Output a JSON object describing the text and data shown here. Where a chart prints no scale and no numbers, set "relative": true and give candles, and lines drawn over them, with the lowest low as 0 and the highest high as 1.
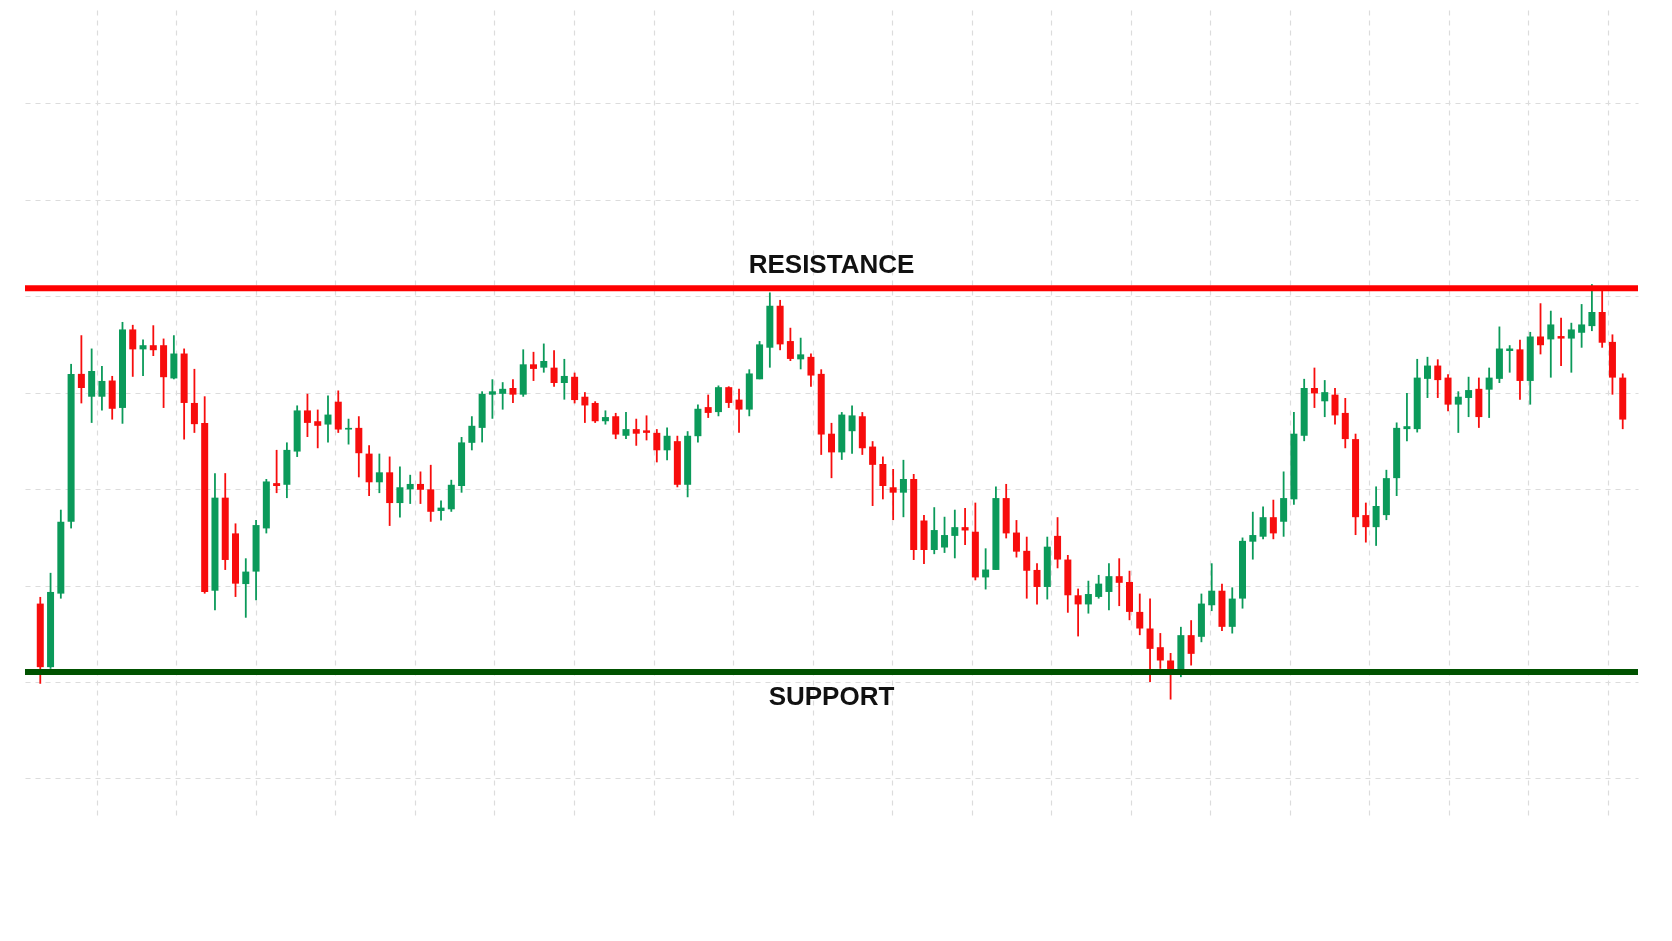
{
  "chart_data": {
    "type": "candlestick",
    "relative": true,
    "grid": true,
    "tick_labels": false,
    "categories": [
      null,
      null,
      null,
      null,
      null,
      null,
      null,
      null,
      null,
      null,
      null,
      null,
      null,
      null,
      null,
      null,
      null,
      null,
      null,
      null,
      null,
      null,
      null,
      null,
      null,
      null,
      null,
      null,
      null,
      null,
      null,
      null,
      null,
      null,
      null,
      null,
      null,
      null,
      null,
      null,
      null,
      null,
      null,
      null,
      null,
      null,
      null,
      null,
      null,
      null,
      null,
      null,
      null,
      null,
      null,
      null,
      null,
      null,
      null,
      null,
      null,
      null,
      null,
      null,
      null,
      null,
      null,
      null,
      null,
      null,
      null,
      null,
      null,
      null,
      null,
      null,
      null,
      null,
      null,
      null,
      null,
      null,
      null,
      null,
      null,
      null,
      null,
      null,
      null,
      null,
      null,
      null,
      null,
      null,
      null,
      null,
      null,
      null,
      null,
      null,
      null,
      null,
      null,
      null,
      null,
      null,
      null,
      null,
      null,
      null,
      null,
      null,
      null,
      null,
      null,
      null,
      null,
      null,
      null,
      null,
      null,
      null,
      null,
      null,
      null,
      null,
      null,
      null,
      null,
      null,
      null,
      null,
      null,
      null,
      null,
      null,
      null,
      null,
      null,
      null,
      null,
      null,
      null,
      null,
      null,
      null,
      null,
      null,
      null,
      null,
      null,
      null,
      null,
      null,
      null
    ],
    "ohlc": [
      [
        0.231,
        0.247,
        0.038,
        0.078
      ],
      [
        0.078,
        0.305,
        0.074,
        0.259
      ],
      [
        0.255,
        0.457,
        0.243,
        0.428
      ],
      [
        0.428,
        0.808,
        0.412,
        0.784
      ],
      [
        0.784,
        0.877,
        0.713,
        0.75
      ],
      [
        0.729,
        0.845,
        0.666,
        0.791
      ],
      [
        0.729,
        0.803,
        0.696,
        0.767
      ],
      [
        0.768,
        0.779,
        0.674,
        0.7
      ],
      [
        0.702,
        0.909,
        0.664,
        0.891
      ],
      [
        0.891,
        0.902,
        0.777,
        0.843
      ],
      [
        0.843,
        0.867,
        0.779,
        0.853
      ],
      [
        0.853,
        0.901,
        0.827,
        0.841
      ],
      [
        0.853,
        0.869,
        0.702,
        0.776
      ],
      [
        0.773,
        0.877,
        0.771,
        0.833
      ],
      [
        0.833,
        0.845,
        0.626,
        0.714
      ],
      [
        0.714,
        0.796,
        0.642,
        0.663
      ],
      [
        0.666,
        0.73,
        0.255,
        0.259
      ],
      [
        0.262,
        0.545,
        0.215,
        0.486
      ],
      [
        0.486,
        0.545,
        0.312,
        0.336
      ],
      [
        0.4,
        0.424,
        0.247,
        0.279
      ],
      [
        0.278,
        0.34,
        0.197,
        0.308
      ],
      [
        0.308,
        0.432,
        0.239,
        0.42
      ],
      [
        0.412,
        0.531,
        0.4,
        0.525
      ],
      [
        0.521,
        0.601,
        0.497,
        0.514
      ],
      [
        0.517,
        0.619,
        0.485,
        0.601
      ],
      [
        0.597,
        0.708,
        0.584,
        0.696
      ],
      [
        0.696,
        0.736,
        0.632,
        0.666
      ],
      [
        0.67,
        0.698,
        0.605,
        0.659
      ],
      [
        0.662,
        0.732,
        0.619,
        0.686
      ],
      [
        0.717,
        0.744,
        0.642,
        0.65
      ],
      [
        0.65,
        0.676,
        0.614,
        0.654
      ],
      [
        0.654,
        0.682,
        0.535,
        0.593
      ],
      [
        0.592,
        0.612,
        0.49,
        0.523
      ],
      [
        0.523,
        0.592,
        0.497,
        0.547
      ],
      [
        0.547,
        0.585,
        0.418,
        0.473
      ],
      [
        0.473,
        0.561,
        0.438,
        0.511
      ],
      [
        0.506,
        0.541,
        0.471,
        0.519
      ],
      [
        0.519,
        0.549,
        0.471,
        0.505
      ],
      [
        0.506,
        0.565,
        0.428,
        0.452
      ],
      [
        0.454,
        0.479,
        0.431,
        0.462
      ],
      [
        0.458,
        0.529,
        0.452,
        0.517
      ],
      [
        0.514,
        0.632,
        0.498,
        0.619
      ],
      [
        0.618,
        0.682,
        0.6,
        0.659
      ],
      [
        0.654,
        0.742,
        0.619,
        0.736
      ],
      [
        0.734,
        0.771,
        0.676,
        0.742
      ],
      [
        0.736,
        0.764,
        0.698,
        0.748
      ],
      [
        0.75,
        0.771,
        0.714,
        0.734
      ],
      [
        0.734,
        0.843,
        0.729,
        0.807
      ],
      [
        0.807,
        0.837,
        0.767,
        0.796
      ],
      [
        0.799,
        0.857,
        0.787,
        0.815
      ],
      [
        0.799,
        0.841,
        0.753,
        0.762
      ],
      [
        0.762,
        0.82,
        0.722,
        0.779
      ],
      [
        0.777,
        0.787,
        0.713,
        0.721
      ],
      [
        0.729,
        0.74,
        0.666,
        0.708
      ],
      [
        0.714,
        0.718,
        0.666,
        0.67
      ],
      [
        0.67,
        0.696,
        0.662,
        0.68
      ],
      [
        0.682,
        0.69,
        0.627,
        0.638
      ],
      [
        0.635,
        0.692,
        0.627,
        0.651
      ],
      [
        0.651,
        0.676,
        0.611,
        0.64
      ],
      [
        0.648,
        0.684,
        0.624,
        0.642
      ],
      [
        0.642,
        0.651,
        0.571,
        0.6
      ],
      [
        0.6,
        0.655,
        0.576,
        0.635
      ],
      [
        0.622,
        0.635,
        0.511,
        0.517
      ],
      [
        0.517,
        0.646,
        0.487,
        0.635
      ],
      [
        0.634,
        0.71,
        0.619,
        0.7
      ],
      [
        0.704,
        0.734,
        0.678,
        0.69
      ],
      [
        0.692,
        0.756,
        0.682,
        0.752
      ],
      [
        0.752,
        0.754,
        0.702,
        0.714
      ],
      [
        0.722,
        0.748,
        0.642,
        0.698
      ],
      [
        0.698,
        0.795,
        0.682,
        0.785
      ],
      [
        0.771,
        0.863,
        0.771,
        0.855
      ],
      [
        0.847,
        0.98,
        0.799,
        0.948
      ],
      [
        0.948,
        0.962,
        0.841,
        0.855
      ],
      [
        0.863,
        0.895,
        0.815,
        0.82
      ],
      [
        0.819,
        0.871,
        0.795,
        0.831
      ],
      [
        0.825,
        0.833,
        0.753,
        0.78
      ],
      [
        0.784,
        0.795,
        0.589,
        0.638
      ],
      [
        0.64,
        0.666,
        0.533,
        0.595
      ],
      [
        0.595,
        0.692,
        0.577,
        0.686
      ],
      [
        0.646,
        0.708,
        0.592,
        0.684
      ],
      [
        0.682,
        0.692,
        0.589,
        0.605
      ],
      [
        0.609,
        0.622,
        0.466,
        0.565
      ],
      [
        0.567,
        0.585,
        0.482,
        0.514
      ],
      [
        0.511,
        0.555,
        0.432,
        0.498
      ],
      [
        0.498,
        0.577,
        0.439,
        0.531
      ],
      [
        0.531,
        0.543,
        0.336,
        0.36
      ],
      [
        0.431,
        0.444,
        0.326,
        0.36
      ],
      [
        0.36,
        0.463,
        0.35,
        0.408
      ],
      [
        0.366,
        0.44,
        0.353,
        0.396
      ],
      [
        0.394,
        0.457,
        0.34,
        0.415
      ],
      [
        0.415,
        0.461,
        0.372,
        0.407
      ],
      [
        0.404,
        0.474,
        0.287,
        0.294
      ],
      [
        0.294,
        0.364,
        0.265,
        0.313
      ],
      [
        0.312,
        0.513,
        0.312,
        0.485
      ],
      [
        0.485,
        0.519,
        0.388,
        0.4
      ],
      [
        0.402,
        0.432,
        0.342,
        0.356
      ],
      [
        0.358,
        0.392,
        0.243,
        0.31
      ],
      [
        0.312,
        0.328,
        0.229,
        0.271
      ],
      [
        0.271,
        0.392,
        0.241,
        0.368
      ],
      [
        0.394,
        0.439,
        0.316,
        0.337
      ],
      [
        0.337,
        0.348,
        0.209,
        0.251
      ],
      [
        0.251,
        0.267,
        0.152,
        0.229
      ],
      [
        0.229,
        0.286,
        0.207,
        0.254
      ],
      [
        0.247,
        0.3,
        0.243,
        0.279
      ],
      [
        0.259,
        0.328,
        0.215,
        0.297
      ],
      [
        0.297,
        0.34,
        0.225,
        0.281
      ],
      [
        0.283,
        0.31,
        0.191,
        0.211
      ],
      [
        0.211,
        0.255,
        0.155,
        0.171
      ],
      [
        0.171,
        0.243,
        0.042,
        0.122
      ],
      [
        0.126,
        0.16,
        0.074,
        0.094
      ],
      [
        0.094,
        0.112,
        0.0,
        0.07
      ],
      [
        0.062,
        0.175,
        0.054,
        0.155
      ],
      [
        0.155,
        0.191,
        0.082,
        0.11
      ],
      [
        0.151,
        0.255,
        0.138,
        0.231
      ],
      [
        0.227,
        0.328,
        0.213,
        0.262
      ],
      [
        0.262,
        0.279,
        0.165,
        0.175
      ],
      [
        0.175,
        0.27,
        0.159,
        0.243
      ],
      [
        0.243,
        0.39,
        0.219,
        0.382
      ],
      [
        0.38,
        0.452,
        0.337,
        0.396
      ],
      [
        0.392,
        0.465,
        0.386,
        0.439
      ],
      [
        0.439,
        0.481,
        0.386,
        0.4
      ],
      [
        0.428,
        0.549,
        0.392,
        0.485
      ],
      [
        0.482,
        0.692,
        0.469,
        0.64
      ],
      [
        0.635,
        0.772,
        0.622,
        0.75
      ],
      [
        0.75,
        0.799,
        0.702,
        0.737
      ],
      [
        0.718,
        0.769,
        0.68,
        0.74
      ],
      [
        0.734,
        0.75,
        0.662,
        0.684
      ],
      [
        0.69,
        0.726,
        0.605,
        0.627
      ],
      [
        0.627,
        0.64,
        0.396,
        0.439
      ],
      [
        0.444,
        0.474,
        0.378,
        0.415
      ],
      [
        0.415,
        0.513,
        0.37,
        0.466
      ],
      [
        0.444,
        0.553,
        0.432,
        0.533
      ],
      [
        0.533,
        0.667,
        0.49,
        0.654
      ],
      [
        0.651,
        0.738,
        0.622,
        0.658
      ],
      [
        0.651,
        0.82,
        0.643,
        0.775
      ],
      [
        0.772,
        0.825,
        0.726,
        0.804
      ],
      [
        0.804,
        0.819,
        0.726,
        0.769
      ],
      [
        0.775,
        0.783,
        0.694,
        0.71
      ],
      [
        0.71,
        0.742,
        0.642,
        0.729
      ],
      [
        0.726,
        0.777,
        0.68,
        0.745
      ],
      [
        0.748,
        0.775,
        0.654,
        0.68
      ],
      [
        0.746,
        0.799,
        0.678,
        0.775
      ],
      [
        0.772,
        0.898,
        0.762,
        0.845
      ],
      [
        0.839,
        0.853,
        0.787,
        0.845
      ],
      [
        0.843,
        0.866,
        0.722,
        0.767
      ],
      [
        0.767,
        0.885,
        0.71,
        0.874
      ],
      [
        0.874,
        0.954,
        0.831,
        0.853
      ],
      [
        0.867,
        0.936,
        0.775,
        0.903
      ],
      [
        0.875,
        0.919,
        0.803,
        0.869
      ],
      [
        0.869,
        0.907,
        0.787,
        0.891
      ],
      [
        0.883,
        0.952,
        0.847,
        0.903
      ],
      [
        0.899,
        1.0,
        0.887,
        0.933
      ],
      [
        0.933,
        0.988,
        0.847,
        0.859
      ],
      [
        0.861,
        0.879,
        0.734,
        0.775
      ],
      [
        0.775,
        0.785,
        0.651,
        0.674
      ]
    ],
    "colors": [
      "#f70d0d",
      "#0b9a5a",
      "#0b9a5a",
      "#0b9a5a",
      "#f70d0d",
      "#0b9a5a",
      "#0b9a5a",
      "#f70d0d",
      "#0b9a5a",
      "#f70d0d",
      "#0b9a5a",
      "#f70d0d",
      "#f70d0d",
      "#0b9a5a",
      "#f70d0d",
      "#f70d0d",
      "#f70d0d",
      "#0b9a5a",
      "#f70d0d",
      "#f70d0d",
      "#0b9a5a",
      "#0b9a5a",
      "#0b9a5a",
      "#f70d0d",
      "#0b9a5a",
      "#0b9a5a",
      "#f70d0d",
      "#f70d0d",
      "#0b9a5a",
      "#f70d0d",
      "#0b9a5a",
      "#f70d0d",
      "#f70d0d",
      "#0b9a5a",
      "#f70d0d",
      "#0b9a5a",
      "#0b9a5a",
      "#f70d0d",
      "#f70d0d",
      "#0b9a5a",
      "#0b9a5a",
      "#0b9a5a",
      "#0b9a5a",
      "#0b9a5a",
      "#0b9a5a",
      "#0b9a5a",
      "#f70d0d",
      "#0b9a5a",
      "#f70d0d",
      "#0b9a5a",
      "#f70d0d",
      "#0b9a5a",
      "#f70d0d",
      "#f70d0d",
      "#f70d0d",
      "#0b9a5a",
      "#f70d0d",
      "#0b9a5a",
      "#f70d0d",
      "#f70d0d",
      "#f70d0d",
      "#0b9a5a",
      "#f70d0d",
      "#0b9a5a",
      "#0b9a5a",
      "#f70d0d",
      "#0b9a5a",
      "#f70d0d",
      "#f70d0d",
      "#0b9a5a",
      "#0b9a5a",
      "#0b9a5a",
      "#f70d0d",
      "#f70d0d",
      "#0b9a5a",
      "#f70d0d",
      "#f70d0d",
      "#f70d0d",
      "#0b9a5a",
      "#0b9a5a",
      "#f70d0d",
      "#f70d0d",
      "#f70d0d",
      "#f70d0d",
      "#0b9a5a",
      "#f70d0d",
      "#f70d0d",
      "#0b9a5a",
      "#0b9a5a",
      "#0b9a5a",
      "#f70d0d",
      "#f70d0d",
      "#0b9a5a",
      "#0b9a5a",
      "#f70d0d",
      "#f70d0d",
      "#f70d0d",
      "#f70d0d",
      "#0b9a5a",
      "#f70d0d",
      "#f70d0d",
      "#f70d0d",
      "#0b9a5a",
      "#0b9a5a",
      "#0b9a5a",
      "#f70d0d",
      "#f70d0d",
      "#f70d0d",
      "#f70d0d",
      "#f70d0d",
      "#f70d0d",
      "#0b9a5a",
      "#f70d0d",
      "#0b9a5a",
      "#0b9a5a",
      "#f70d0d",
      "#0b9a5a",
      "#0b9a5a",
      "#0b9a5a",
      "#0b9a5a",
      "#f70d0d",
      "#0b9a5a",
      "#0b9a5a",
      "#0b9a5a",
      "#f70d0d",
      "#0b9a5a",
      "#f70d0d",
      "#f70d0d",
      "#f70d0d",
      "#f70d0d",
      "#0b9a5a",
      "#0b9a5a",
      "#0b9a5a",
      "#0b9a5a",
      "#0b9a5a",
      "#0b9a5a",
      "#f70d0d",
      "#f70d0d",
      "#0b9a5a",
      "#0b9a5a",
      "#f70d0d",
      "#0b9a5a",
      "#0b9a5a",
      "#0b9a5a",
      "#f70d0d",
      "#0b9a5a",
      "#f70d0d",
      "#0b9a5a",
      "#f70d0d",
      "#0b9a5a",
      "#0b9a5a",
      "#0b9a5a",
      "#f70d0d",
      "#f70d0d",
      "#f70d0d"
    ],
    "ref_lines": [
      {
        "axis": "y",
        "value": 0.99,
        "label": "RESISTANCE",
        "color": "#ff0000"
      },
      {
        "axis": "y",
        "value": 0.066,
        "label": "SUPPORT",
        "color": "#005200"
      }
    ]
  }
}
